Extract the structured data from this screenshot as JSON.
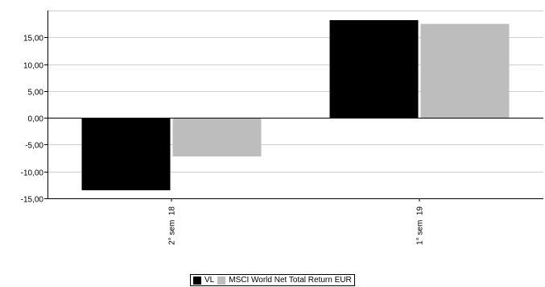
{
  "chart_data": {
    "type": "bar",
    "categories": [
      "2° sem  18",
      "1° sem  19"
    ],
    "series": [
      {
        "name": "VL",
        "color": "#000000",
        "values": [
          -13.5,
          18.2
        ]
      },
      {
        "name": "MSCI World Net Total Return EUR",
        "color": "#bdbdbd",
        "values": [
          -7.2,
          17.5
        ]
      }
    ],
    "ylim": [
      -15,
      20
    ],
    "yticks": [
      -15,
      -10,
      -5,
      0,
      5,
      10,
      15
    ],
    "ytick_labels": [
      "-15,00",
      "-10,00",
      "-5,00",
      "0,00",
      "5,00",
      "10,00",
      "15,00"
    ],
    "grid": true,
    "legend_position": "bottom-center",
    "title": "",
    "xlabel": "",
    "ylabel": ""
  }
}
